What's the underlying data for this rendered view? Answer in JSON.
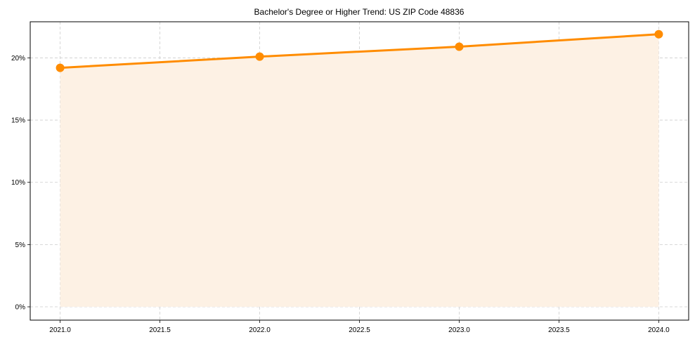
{
  "chart_data": {
    "type": "line",
    "title": "Bachelor's Degree or Higher Trend: US ZIP Code 48836",
    "xlabel": "",
    "ylabel": "",
    "x": [
      2021,
      2022,
      2023,
      2024
    ],
    "series": [
      {
        "name": "Bachelor's Degree or Higher",
        "values": [
          19.2,
          20.1,
          20.9,
          21.9
        ],
        "color": "#ff8c00",
        "fill": true,
        "fill_color": "#fdf1e4",
        "marker": "circle"
      }
    ],
    "xlim": [
      2020.85,
      2024.15
    ],
    "ylim": [
      -1.07,
      22.9
    ],
    "x_ticks": [
      2021.0,
      2021.5,
      2022.0,
      2022.5,
      2023.0,
      2023.5,
      2024.0
    ],
    "x_tick_labels": [
      "2021.0",
      "2021.5",
      "2022.0",
      "2022.5",
      "2023.0",
      "2023.5",
      "2024.0"
    ],
    "y_ticks": [
      0,
      5,
      10,
      15,
      20
    ],
    "y_tick_labels": [
      "0%",
      "5%",
      "10%",
      "15%",
      "20%"
    ],
    "grid": true,
    "legend": "none"
  }
}
